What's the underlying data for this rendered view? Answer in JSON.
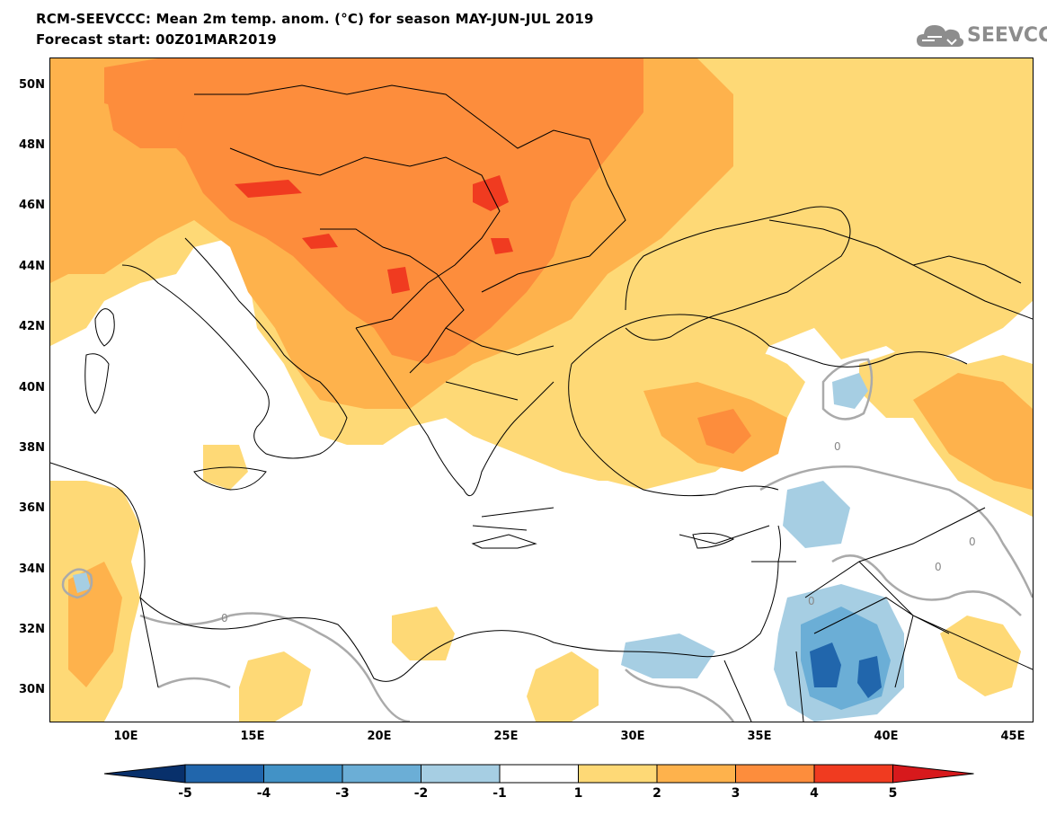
{
  "header": {
    "title_line1": "RCM-SEEVCCC: Mean 2m temp. anom. (°C) for season MAY-JUN-JUL 2019",
    "title_line2": "Forecast start: 00Z01MAR2019",
    "logo_text": "SEEVCCC"
  },
  "map": {
    "lat_ticks": [
      "50N",
      "48N",
      "46N",
      "44N",
      "42N",
      "40N",
      "38N",
      "36N",
      "34N",
      "32N",
      "30N"
    ],
    "lon_ticks": [
      "10E",
      "15E",
      "20E",
      "25E",
      "30E",
      "35E",
      "40E",
      "45E"
    ],
    "contour_labels": [
      "0",
      "0",
      "0",
      "0",
      "0"
    ],
    "land_color": "#ffffff",
    "sea_color": "#ffffff"
  },
  "colorbar": {
    "levels": [
      "-5",
      "-4",
      "-3",
      "-2",
      "-1",
      "1",
      "2",
      "3",
      "4",
      "5"
    ],
    "colors": [
      "#08306b",
      "#2166ac",
      "#4292c6",
      "#6baed6",
      "#a6cee3",
      "#ffffff",
      "#fed976",
      "#feb24c",
      "#fd8d3c",
      "#f03b20",
      "#d7191c"
    ]
  }
}
